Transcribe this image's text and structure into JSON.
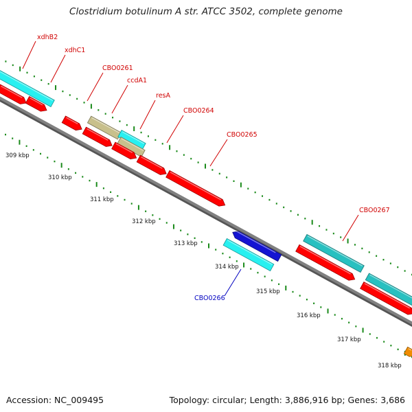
{
  "title": "Clostridium botulinum A str. ATCC 3502, complete genome",
  "footer": {
    "accession": "Accession: NC_009495",
    "topology": "Topology: circular; Length: 3,886,916 bp; Genes: 3,686"
  },
  "colors": {
    "backbone": "#808080",
    "tick": "#1a8a1a",
    "cds_forward": "#ff0000",
    "cds_reverse": "#1414d2",
    "cyan": "#28f0f0",
    "teal": "#28c0c0",
    "khaki": "#c8c08c",
    "orange": "#f08c00",
    "label_red": "#d00000",
    "label_blue": "#0000c0"
  },
  "scale_labels": [
    "309 kbp",
    "310 kbp",
    "311 kbp",
    "312 kbp",
    "313 kbp",
    "314 kbp",
    "315 kbp",
    "316 kbp",
    "317 kbp",
    "318 kbp"
  ],
  "gene_labels": [
    {
      "text": "xdhB2",
      "color": "red"
    },
    {
      "text": "xdhC1",
      "color": "red"
    },
    {
      "text": "CBO0261",
      "color": "red"
    },
    {
      "text": "ccdA1",
      "color": "red"
    },
    {
      "text": "resA",
      "color": "red"
    },
    {
      "text": "CBO0264",
      "color": "red"
    },
    {
      "text": "CBO0265",
      "color": "red"
    },
    {
      "text": "CBO0266",
      "color": "blue"
    },
    {
      "text": "CBO0267",
      "color": "red"
    }
  ]
}
